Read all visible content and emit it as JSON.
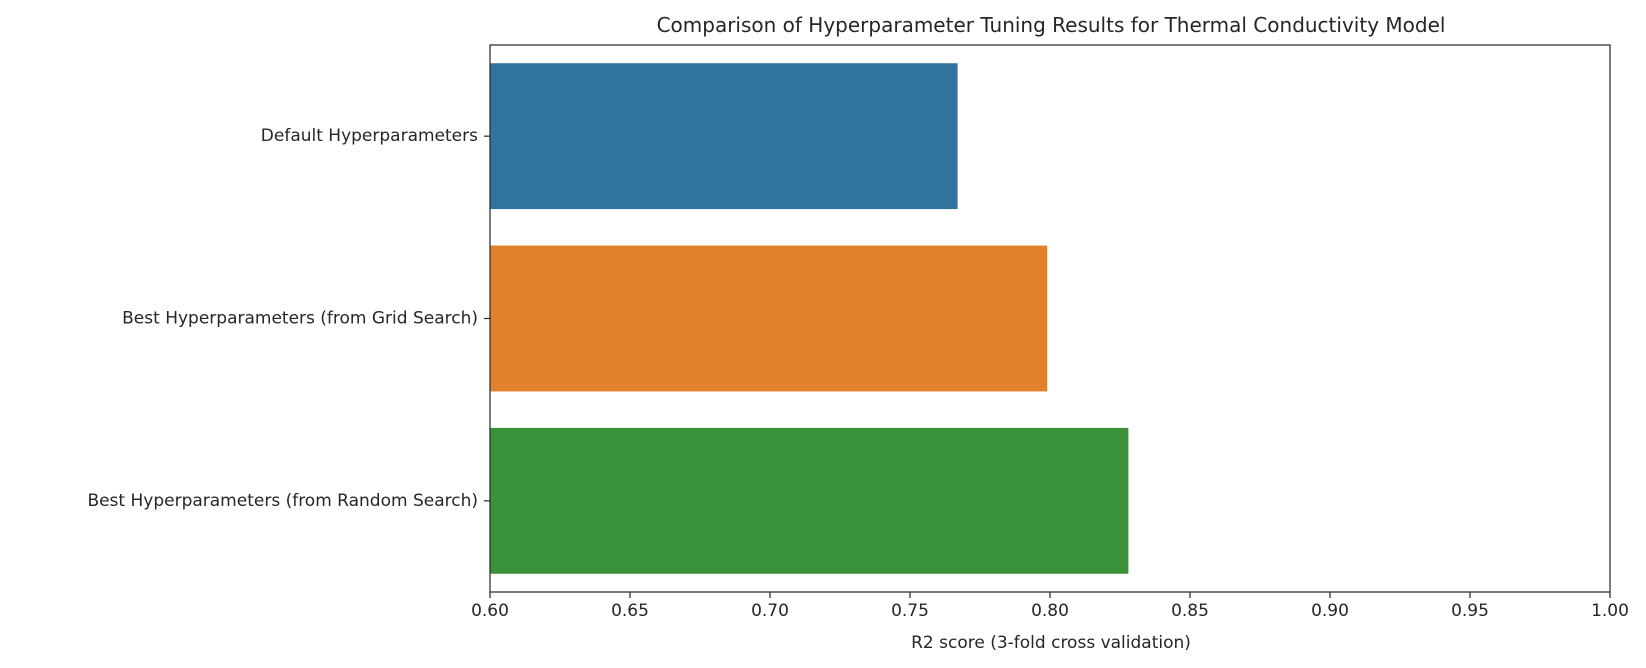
{
  "chart_data": {
    "type": "bar",
    "orientation": "horizontal",
    "title": "Comparison of Hyperparameter Tuning Results for Thermal Conductivity Model",
    "xlabel": "R2 score (3-fold cross validation)",
    "ylabel": "",
    "xlim": [
      0.6,
      1.0
    ],
    "xticks": [
      "0.60",
      "0.65",
      "0.70",
      "0.75",
      "0.80",
      "0.85",
      "0.90",
      "0.95",
      "1.00"
    ],
    "categories": [
      "Default Hyperparameters",
      "Best Hyperparameters (from Grid Search)",
      "Best Hyperparameters (from Random Search)"
    ],
    "values": [
      0.767,
      0.799,
      0.828
    ],
    "colors": [
      "#3274a1",
      "#e1812c",
      "#3a923a"
    ],
    "grid": false,
    "legend": "none"
  }
}
